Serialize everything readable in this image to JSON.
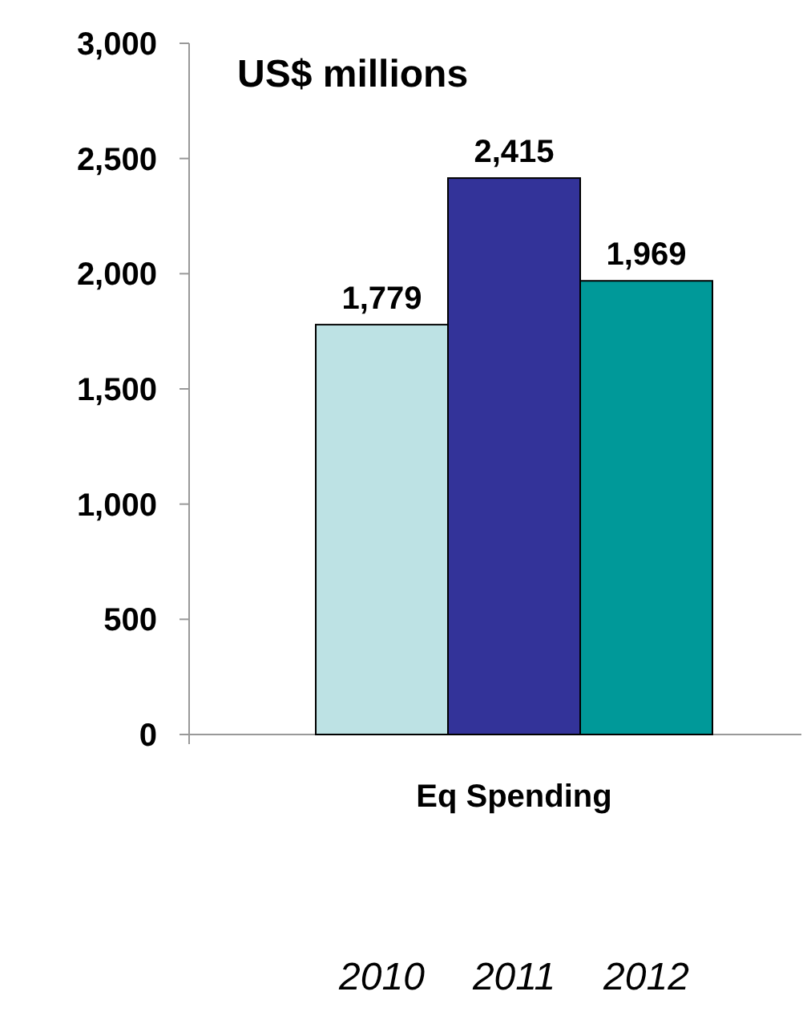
{
  "chart_data": {
    "type": "bar",
    "ylabel": "US$ millions",
    "xlabel": "Eq Spending",
    "categories": [
      "2010",
      "2011",
      "2012"
    ],
    "values": [
      1779,
      2415,
      1969
    ],
    "colors": [
      "#bde2e4",
      "#333399",
      "#009999"
    ],
    "ylim": [
      0,
      3000
    ],
    "yticks": [
      {
        "value": 0,
        "label": "0"
      },
      {
        "value": 500,
        "label": "500"
      },
      {
        "value": 1000,
        "label": "1,000"
      },
      {
        "value": 1500,
        "label": "1,500"
      },
      {
        "value": 2000,
        "label": "2,000"
      },
      {
        "value": 2500,
        "label": "2,500"
      },
      {
        "value": 3000,
        "label": "3,000"
      }
    ],
    "value_labels": [
      "1,779",
      "2,415",
      "1,969"
    ],
    "grid": false
  }
}
